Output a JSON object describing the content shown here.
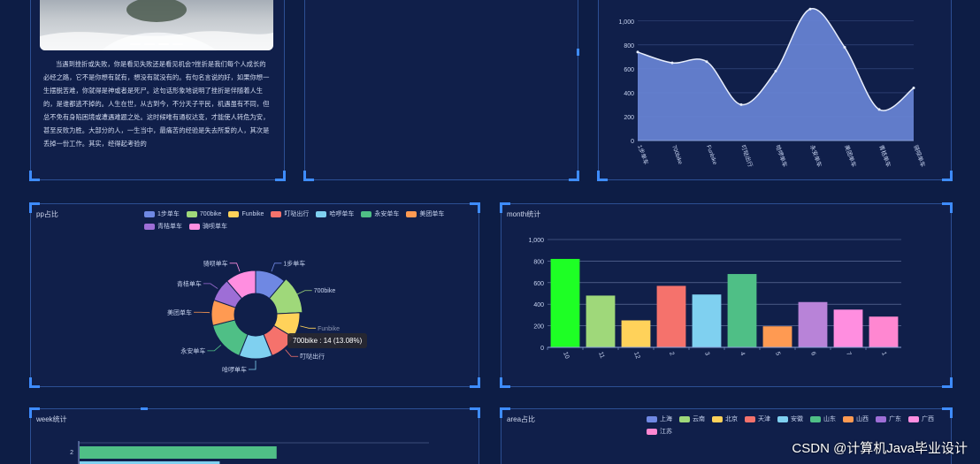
{
  "article": {
    "text": "当遇到挫折或失败，你是看见失败还是看见机会?挫折是我们每个人成长的必经之路，它不是你想有就有，想没有就没有的。有句名言说的好，如果你想一生摆脱苦难，你就得是神或者是死尸。这句话形象地说明了挫折是伴随着人生的，是谁都逃不掉的。人生在世，从古到今，不分天子平民，机遇虽有不同，但总不免有身陷困境或遭遇难题之处。这时候唯有通权达变，才能使人转危为安，甚至反败为胜。大部分的人，一生当中，最痛苦的经验是失去所爱的人，其次是丢掉一份工作。其实，经得起考验的"
  },
  "area_chart": {
    "chart_data": {
      "type": "area",
      "categories": [
        "1步单车",
        "700bike",
        "Funbike",
        "叮哒出行",
        "哈啰单车",
        "永安单车",
        "美团单车",
        "青桔单车",
        "骑呗单车"
      ],
      "values": [
        740,
        650,
        660,
        300,
        580,
        1100,
        780,
        260,
        440
      ],
      "yticks": [
        "0",
        "200",
        "400",
        "600",
        "800",
        "1,000"
      ],
      "ylim": [
        0,
        1050
      ]
    }
  },
  "pie_panel": {
    "title": "pp占比",
    "legend": [
      {
        "label": "1步单车",
        "color": "#6f88e3"
      },
      {
        "label": "700bike",
        "color": "#9fd87a"
      },
      {
        "label": "Funbike",
        "color": "#ffd25a"
      },
      {
        "label": "叮哒出行",
        "color": "#f5726c"
      },
      {
        "label": "哈啰单车",
        "color": "#7fd0f0"
      },
      {
        "label": "永安单车",
        "color": "#4fbf86"
      },
      {
        "label": "美团单车",
        "color": "#ff9a52"
      },
      {
        "label": "青桔单车",
        "color": "#9e6ed6"
      },
      {
        "label": "骑呗单车",
        "color": "#ff8ee0"
      }
    ],
    "tooltip": "700bike : 14 (13.08%)",
    "chart_data": {
      "type": "pie",
      "labels": [
        "1步单车",
        "700bike",
        "Funbike",
        "叮哒出行",
        "哈啰单车",
        "永安单车",
        "美团单车",
        "青桔单车",
        "骑呗单车"
      ],
      "values": [
        12,
        14,
        10,
        11,
        13,
        16,
        10,
        9,
        12
      ],
      "colors": [
        "#6f88e3",
        "#9fd87a",
        "#ffd25a",
        "#f5726c",
        "#7fd0f0",
        "#4fbf86",
        "#ff9a52",
        "#9e6ed6",
        "#ff8ee0"
      ]
    }
  },
  "month_panel": {
    "title": "month统计",
    "chart_data": {
      "type": "bar",
      "categories": [
        "10",
        "11",
        "12",
        "2",
        "3",
        "4",
        "5",
        "6",
        "7",
        "1"
      ],
      "values": [
        820,
        480,
        250,
        570,
        490,
        680,
        195,
        420,
        350,
        285
      ],
      "colors": [
        "#1eff25",
        "#9fd87a",
        "#ffd25a",
        "#f5726c",
        "#7fd0f0",
        "#4fbf86",
        "#ff9a52",
        "#b883d8",
        "#ff8ee0",
        "#ff87d1"
      ],
      "yticks": [
        "0",
        "200",
        "400",
        "600",
        "800",
        "1,000"
      ],
      "ylim": [
        0,
        1000
      ]
    }
  },
  "week_panel": {
    "title": "week统计",
    "chart_data": {
      "type": "bar",
      "categories": [
        "2"
      ],
      "values": [
        225
      ],
      "second_bar": 160
    },
    "ytick": "2"
  },
  "area_panel": {
    "title": "area占比",
    "legend": [
      {
        "label": "上海",
        "color": "#6f88e3"
      },
      {
        "label": "云南",
        "color": "#9fd87a"
      },
      {
        "label": "北京",
        "color": "#ffd25a"
      },
      {
        "label": "天津",
        "color": "#f5726c"
      },
      {
        "label": "安徽",
        "color": "#7fd0f0"
      },
      {
        "label": "山东",
        "color": "#4fbf86"
      },
      {
        "label": "山西",
        "color": "#ff9a52"
      },
      {
        "label": "广东",
        "color": "#9e6ed6"
      },
      {
        "label": "广西",
        "color": "#ff8ee0"
      },
      {
        "label": "江苏",
        "color": "#ff87d1"
      }
    ]
  },
  "watermark": "CSDN @计算机Java毕业设计"
}
